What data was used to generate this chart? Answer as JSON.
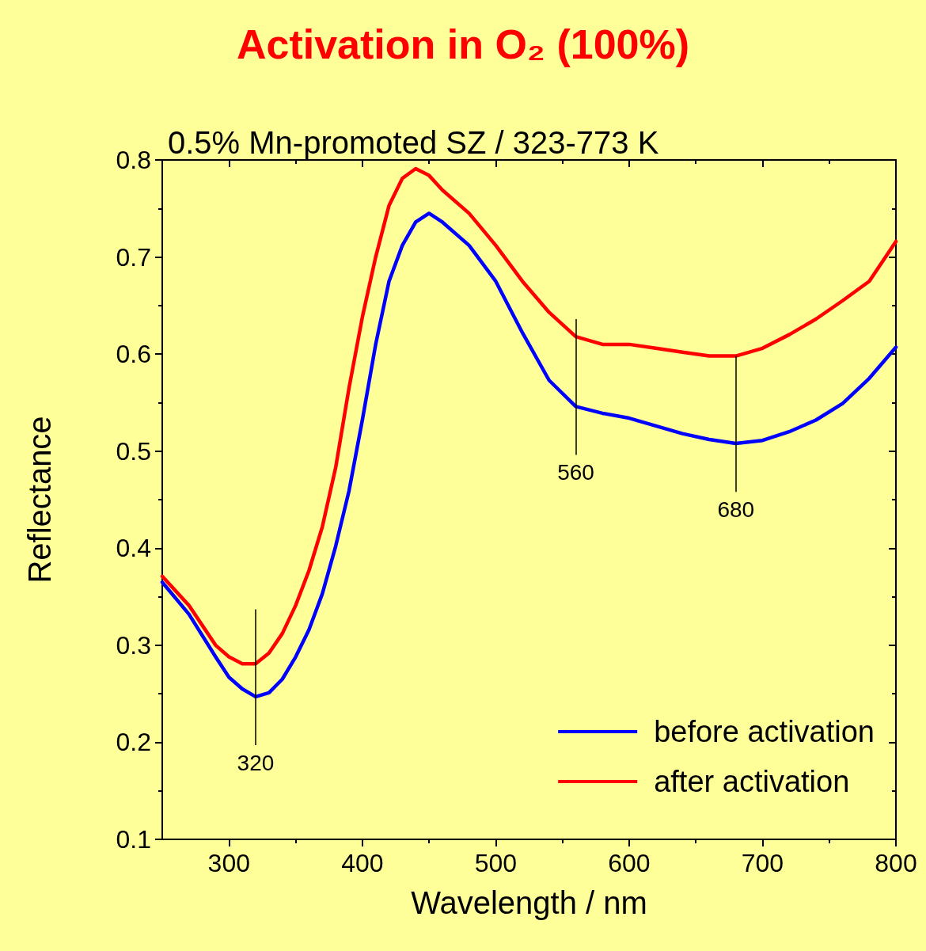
{
  "chart_data": {
    "type": "line",
    "title": "Activation in O₂ (100%)",
    "subtitle": "0.5% Mn-promoted SZ / 323-773 K",
    "xlabel": "Wavelength / nm",
    "ylabel": "Reflectance",
    "x": [
      250,
      270,
      290,
      300,
      310,
      320,
      330,
      340,
      350,
      360,
      370,
      380,
      390,
      400,
      410,
      420,
      430,
      440,
      450,
      460,
      480,
      500,
      520,
      540,
      560,
      580,
      600,
      620,
      640,
      660,
      680,
      700,
      720,
      740,
      760,
      780,
      800
    ],
    "series": [
      {
        "name": "before activation",
        "color": "#0000ff",
        "values": [
          0.365,
          0.332,
          0.288,
          0.267,
          0.255,
          0.247,
          0.251,
          0.265,
          0.288,
          0.316,
          0.353,
          0.402,
          0.459,
          0.532,
          0.61,
          0.675,
          0.712,
          0.736,
          0.745,
          0.736,
          0.712,
          0.675,
          0.622,
          0.573,
          0.546,
          0.539,
          0.534,
          0.526,
          0.518,
          0.512,
          0.508,
          0.511,
          0.52,
          0.532,
          0.549,
          0.575,
          0.607
        ]
      },
      {
        "name": "after activation",
        "color": "#ff0000",
        "values": [
          0.371,
          0.341,
          0.3,
          0.288,
          0.281,
          0.281,
          0.292,
          0.312,
          0.341,
          0.377,
          0.422,
          0.483,
          0.565,
          0.638,
          0.7,
          0.753,
          0.781,
          0.791,
          0.784,
          0.769,
          0.745,
          0.712,
          0.675,
          0.643,
          0.618,
          0.61,
          0.61,
          0.606,
          0.602,
          0.598,
          0.598,
          0.606,
          0.62,
          0.636,
          0.655,
          0.675,
          0.716
        ]
      }
    ],
    "xlim": [
      250,
      800
    ],
    "xticks": [
      300,
      400,
      500,
      600,
      700,
      800
    ],
    "ylim": [
      0.1,
      0.8
    ],
    "yticks": [
      0.1,
      0.2,
      0.3,
      0.4,
      0.5,
      0.6,
      0.7,
      0.8
    ],
    "annotations": [
      {
        "text": "320",
        "x": 320,
        "y": 0.247
      },
      {
        "text": "560",
        "x": 560,
        "y": 0.546
      },
      {
        "text": "680",
        "x": 680,
        "y": 0.508
      }
    ],
    "legend": "bottom right",
    "grid": false,
    "marker": "none",
    "line_style": "solid"
  }
}
